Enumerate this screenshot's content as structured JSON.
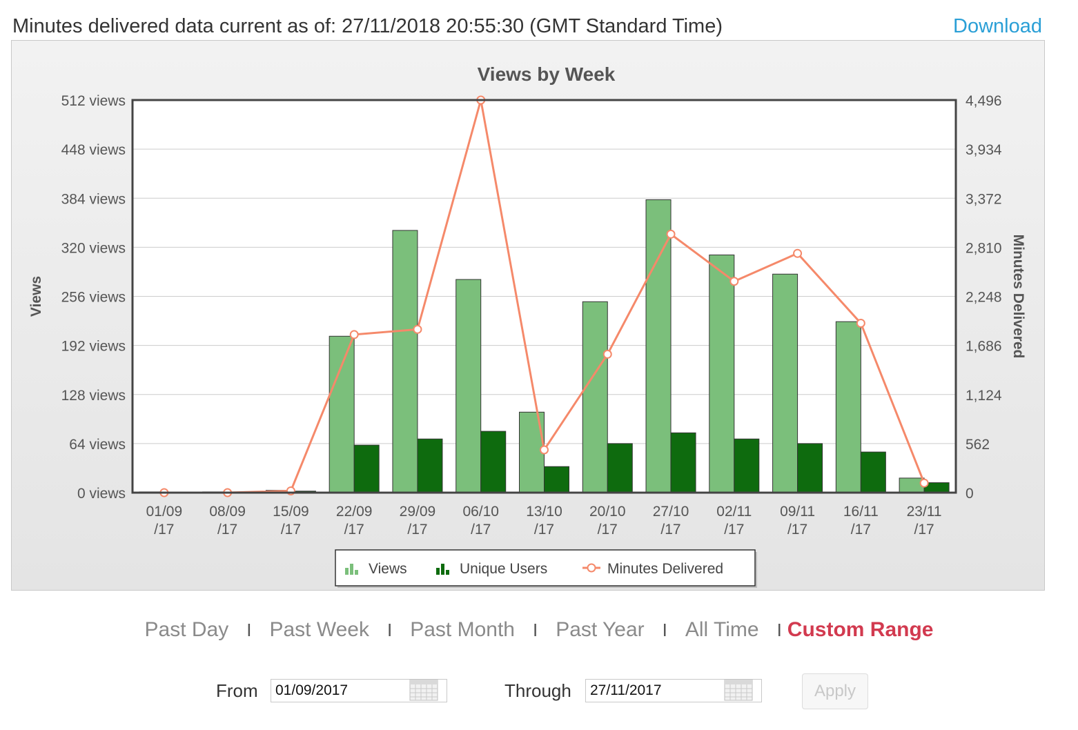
{
  "header": {
    "status_text": "Minutes delivered data current as of: 27/11/2018 20:55:30 (GMT Standard Time)",
    "download_label": "Download"
  },
  "chart_data": {
    "type": "bar",
    "title": "Views by Week",
    "ylabel_left": "Views",
    "ylabel_right": "Minutes Delivered",
    "categories": [
      "01/09\n/17",
      "08/09\n/17",
      "15/09\n/17",
      "22/09\n/17",
      "29/09\n/17",
      "06/10\n/17",
      "13/10\n/17",
      "20/10\n/17",
      "27/10\n/17",
      "02/11\n/17",
      "09/11\n/17",
      "16/11\n/17",
      "23/11\n/17"
    ],
    "ylim_left": [
      0,
      512
    ],
    "ylim_right": [
      0,
      4496
    ],
    "left_ticks": [
      "0 views",
      "64 views",
      "128 views",
      "192 views",
      "256 views",
      "320 views",
      "384 views",
      "448 views",
      "512 views"
    ],
    "right_ticks": [
      "0",
      "562",
      "1,124",
      "1,686",
      "2,248",
      "2,810",
      "3,372",
      "3,934",
      "4,496"
    ],
    "series": [
      {
        "name": "Views",
        "kind": "bar",
        "axis": "left",
        "color": "#7bbf7b",
        "values": [
          1,
          1,
          3,
          204,
          342,
          278,
          105,
          249,
          382,
          310,
          285,
          223,
          19
        ]
      },
      {
        "name": "Unique Users",
        "kind": "bar",
        "axis": "left",
        "color": "#0e6b0e",
        "values": [
          0,
          0,
          2,
          62,
          70,
          80,
          34,
          64,
          78,
          70,
          64,
          53,
          13
        ]
      },
      {
        "name": "Minutes Delivered",
        "kind": "line",
        "axis": "right",
        "color": "#f5896a",
        "values": [
          0,
          0,
          20,
          1810,
          1870,
          4496,
          490,
          1585,
          2960,
          2420,
          2740,
          1940,
          110
        ]
      }
    ],
    "legend_position": "bottom-center",
    "grid": true
  },
  "range_options": [
    "Past Day",
    "Past Week",
    "Past Month",
    "Past Year",
    "All Time",
    "Custom Range"
  ],
  "active_range": "Custom Range",
  "date_range": {
    "from_label": "From",
    "from_value": "01/09/2017",
    "through_label": "Through",
    "through_value": "27/11/2017",
    "apply_label": "Apply"
  }
}
